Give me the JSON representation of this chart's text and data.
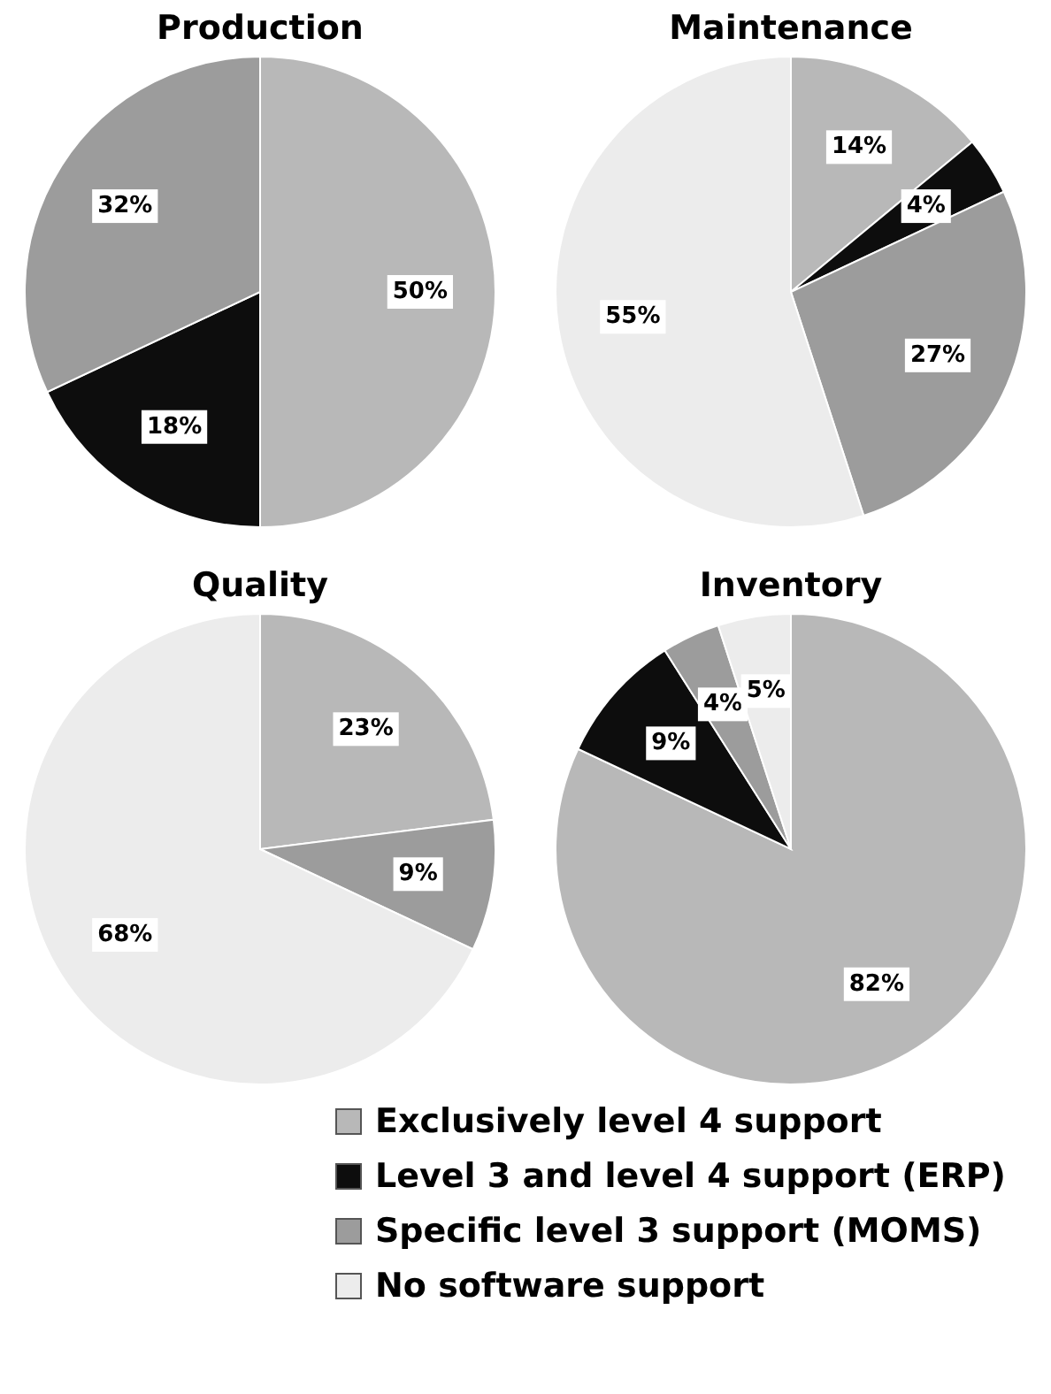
{
  "chart_data": [
    {
      "type": "pie",
      "title": "Production",
      "categories": [
        "Exclusively level 4 support",
        "Level 3 and level 4 support (ERP)",
        "Specific level 3 support (MOMS)",
        "No software support"
      ],
      "values": [
        50,
        18,
        32,
        0
      ],
      "value_labels": [
        "50%",
        "18%",
        "32%",
        null
      ],
      "colors": [
        "#b8b8b8",
        "#0d0d0d",
        "#9c9c9c",
        "#ececec"
      ],
      "legend": "bottom"
    },
    {
      "type": "pie",
      "title": "Maintenance",
      "categories": [
        null,
        null,
        null,
        null
      ],
      "values": [
        14,
        4,
        27,
        55
      ],
      "value_labels": [
        "14%",
        "4%",
        "27%",
        "55%"
      ],
      "colors": [
        "#b8b8b8",
        "#0d0d0d",
        "#9c9c9c",
        "#ececec"
      ]
    },
    {
      "type": "pie",
      "title": "Quality",
      "categories": [
        null,
        null,
        null
      ],
      "values": [
        23,
        9,
        68
      ],
      "value_labels": [
        "23%",
        "9%",
        "68%"
      ],
      "colors": [
        "#b8b8b8",
        "#9c9c9c",
        "#ececec"
      ]
    },
    {
      "type": "pie",
      "title": "Inventory",
      "categories": [
        null,
        null,
        null,
        null
      ],
      "values": [
        82,
        9,
        4,
        5
      ],
      "value_labels": [
        "82%",
        "9%",
        "4%",
        "5%"
      ],
      "colors": [
        "#b8b8b8",
        "#0d0d0d",
        "#9c9c9c",
        "#ececec"
      ]
    }
  ]
}
